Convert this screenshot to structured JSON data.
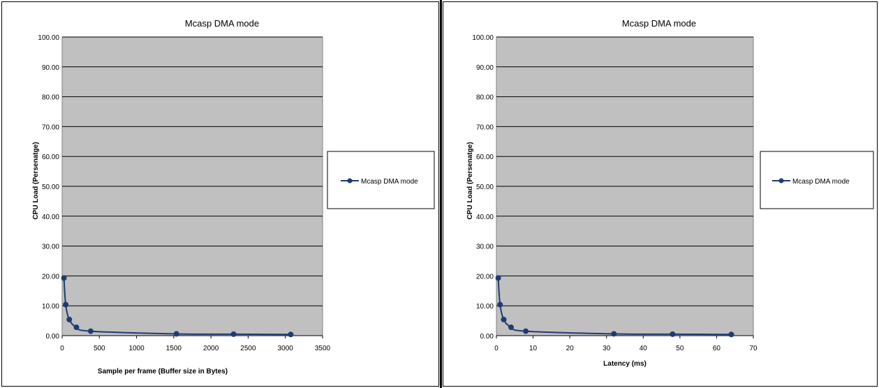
{
  "chart_data": [
    {
      "type": "line",
      "title": "Mcasp DMA mode",
      "xlabel": "Sample per frame (Buffer size in Bytes)",
      "ylabel": "CPU Load (Persenatge)",
      "xlim": [
        0,
        3500
      ],
      "ylim": [
        0,
        100
      ],
      "x_ticks": [
        "0",
        "500",
        "1000",
        "1500",
        "2000",
        "2500",
        "3000",
        "3500"
      ],
      "y_ticks": [
        "0.00",
        "10.00",
        "20.00",
        "30.00",
        "40.00",
        "50.00",
        "60.00",
        "70.00",
        "80.00",
        "90.00",
        "100.00"
      ],
      "grid": true,
      "legend_position": "right",
      "series": [
        {
          "name": "Mcasp DMA mode",
          "color": "#1f3b73",
          "x": [
            24,
            48,
            96,
            192,
            384,
            1536,
            2304,
            3072
          ],
          "y": [
            19.3,
            10.4,
            5.4,
            2.8,
            1.5,
            0.6,
            0.5,
            0.4
          ]
        }
      ]
    },
    {
      "type": "line",
      "title": "Mcasp DMA mode",
      "xlabel": "Latency (ms)",
      "ylabel": "CPU Load (Persenatge)",
      "xlim": [
        0,
        70
      ],
      "ylim": [
        0,
        100
      ],
      "x_ticks": [
        "0",
        "10",
        "20",
        "30",
        "40",
        "50",
        "60",
        "70"
      ],
      "y_ticks": [
        "0.00",
        "10.00",
        "20.00",
        "30.00",
        "40.00",
        "50.00",
        "60.00",
        "70.00",
        "80.00",
        "90.00",
        "100.00"
      ],
      "grid": true,
      "legend_position": "right",
      "series": [
        {
          "name": "Mcasp DMA mode",
          "color": "#1f3b73",
          "x": [
            0.5,
            1,
            2,
            4,
            8,
            32,
            48,
            64
          ],
          "y": [
            19.3,
            10.4,
            5.4,
            2.8,
            1.5,
            0.6,
            0.5,
            0.4
          ]
        }
      ]
    }
  ]
}
